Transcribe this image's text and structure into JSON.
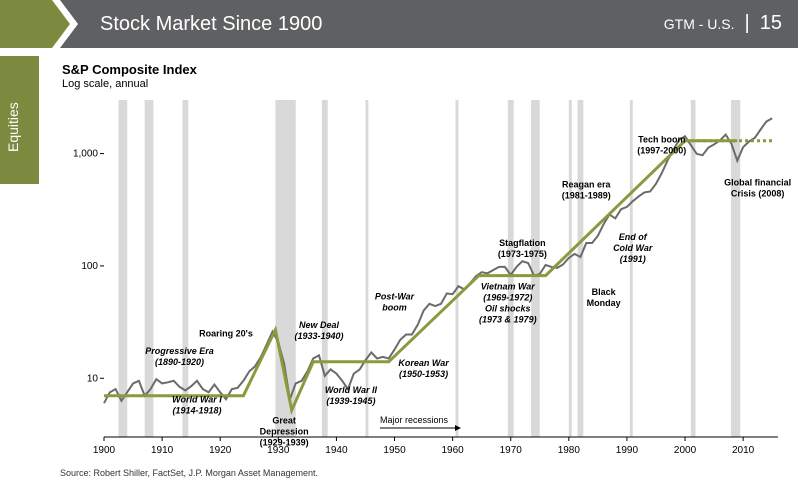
{
  "header": {
    "title": "Stock Market Since 1900",
    "section": "GTM - U.S.",
    "separator": "|",
    "page_number": "15"
  },
  "side_tab": {
    "label": "Equities"
  },
  "source": "Source: Robert Shiller, FactSet, J.P. Morgan Asset Management.",
  "colors": {
    "header_bg": "#5f6062",
    "accent_olive": "#7b8a3f",
    "index_line": "#6b6b6b",
    "trend_line": "#8a9a3c",
    "recession_band": "#d9d9d9"
  },
  "chart_data": {
    "type": "line",
    "title": "S&P Composite Index",
    "subtitle": "Log scale, annual",
    "y_scale": "log",
    "xlim": [
      1900,
      2016
    ],
    "ylim": [
      3,
      3000
    ],
    "x_ticks": [
      "1900",
      "1910",
      "1920",
      "1930",
      "1940",
      "1950",
      "1960",
      "1970",
      "1980",
      "1990",
      "2000",
      "2010"
    ],
    "y_ticks": [
      {
        "value": 10,
        "label": "10"
      },
      {
        "value": 100,
        "label": "100"
      },
      {
        "value": 1000,
        "label": "1,000"
      }
    ],
    "grid": false,
    "recessions_label": "Major recessions",
    "recessions": [
      [
        1902.5,
        1904
      ],
      [
        1907,
        1908.5
      ],
      [
        1913.5,
        1914.5
      ],
      [
        1929.5,
        1933
      ],
      [
        1937.5,
        1938.5
      ],
      [
        1945,
        1945.5
      ],
      [
        1960.5,
        1961
      ],
      [
        1969.5,
        1970.5
      ],
      [
        1973.5,
        1975
      ],
      [
        1980,
        1980.5
      ],
      [
        1981.5,
        1982.5
      ],
      [
        1990.5,
        1991
      ],
      [
        2001,
        2001.8
      ],
      [
        2007.9,
        2009.5
      ]
    ],
    "series": [
      {
        "values": [
          [
            1900,
            6.0
          ],
          [
            1901,
            7.5
          ],
          [
            1902,
            8.0
          ],
          [
            1903,
            6.3
          ],
          [
            1904,
            7.5
          ],
          [
            1905,
            9.0
          ],
          [
            1906,
            9.5
          ],
          [
            1907,
            7.0
          ],
          [
            1908,
            8.0
          ],
          [
            1909,
            9.8
          ],
          [
            1910,
            9.0
          ],
          [
            1911,
            9.2
          ],
          [
            1912,
            9.5
          ],
          [
            1913,
            8.4
          ],
          [
            1914,
            7.8
          ],
          [
            1915,
            8.5
          ],
          [
            1916,
            9.5
          ],
          [
            1917,
            8.0
          ],
          [
            1918,
            7.5
          ],
          [
            1919,
            8.8
          ],
          [
            1920,
            7.5
          ],
          [
            1921,
            6.5
          ],
          [
            1922,
            8.0
          ],
          [
            1923,
            8.2
          ],
          [
            1924,
            9.5
          ],
          [
            1925,
            11.5
          ],
          [
            1926,
            12.8
          ],
          [
            1927,
            15.5
          ],
          [
            1928,
            20.0
          ],
          [
            1929,
            26.0
          ],
          [
            1930,
            21.0
          ],
          [
            1931,
            13.5
          ],
          [
            1932,
            6.5
          ],
          [
            1933,
            9.0
          ],
          [
            1934,
            9.5
          ],
          [
            1935,
            11.5
          ],
          [
            1936,
            15.0
          ],
          [
            1937,
            16.0
          ],
          [
            1938,
            10.5
          ],
          [
            1939,
            12.0
          ],
          [
            1940,
            11.0
          ],
          [
            1941,
            9.5
          ],
          [
            1942,
            8.0
          ],
          [
            1943,
            11.0
          ],
          [
            1944,
            12.0
          ],
          [
            1945,
            14.5
          ],
          [
            1946,
            17.0
          ],
          [
            1947,
            15.0
          ],
          [
            1948,
            15.5
          ],
          [
            1949,
            15.0
          ],
          [
            1950,
            18.0
          ],
          [
            1951,
            22.0
          ],
          [
            1952,
            24.5
          ],
          [
            1953,
            24.5
          ],
          [
            1954,
            30.0
          ],
          [
            1955,
            40.0
          ],
          [
            1956,
            46.0
          ],
          [
            1957,
            44.0
          ],
          [
            1958,
            46.0
          ],
          [
            1959,
            57.0
          ],
          [
            1960,
            56.0
          ],
          [
            1961,
            66.0
          ],
          [
            1962,
            62.0
          ],
          [
            1963,
            70.0
          ],
          [
            1964,
            81.0
          ],
          [
            1965,
            88.0
          ],
          [
            1966,
            86.0
          ],
          [
            1967,
            92.0
          ],
          [
            1968,
            98.0
          ],
          [
            1969,
            98.0
          ],
          [
            1970,
            83.0
          ],
          [
            1971,
            98.0
          ],
          [
            1972,
            110.0
          ],
          [
            1973,
            106.0
          ],
          [
            1974,
            82.0
          ],
          [
            1975,
            85.0
          ],
          [
            1976,
            102.0
          ],
          [
            1977,
            98.0
          ],
          [
            1978,
            96.0
          ],
          [
            1979,
            103.0
          ],
          [
            1980,
            118.0
          ],
          [
            1981,
            128.0
          ],
          [
            1982,
            120.0
          ],
          [
            1983,
            160.0
          ],
          [
            1984,
            160.0
          ],
          [
            1985,
            186.0
          ],
          [
            1986,
            236.0
          ],
          [
            1987,
            287.0
          ],
          [
            1988,
            265.0
          ],
          [
            1989,
            320.0
          ],
          [
            1990,
            335.0
          ],
          [
            1991,
            376.0
          ],
          [
            1992,
            416.0
          ],
          [
            1993,
            451.0
          ],
          [
            1994,
            460.0
          ],
          [
            1995,
            540.0
          ],
          [
            1996,
            670.0
          ],
          [
            1997,
            870.0
          ],
          [
            1998,
            1085.0
          ],
          [
            1999,
            1327.0
          ],
          [
            2000,
            1427.0
          ],
          [
            2001,
            1190.0
          ],
          [
            2002,
            995.0
          ],
          [
            2003,
            965.0
          ],
          [
            2004,
            1130.0
          ],
          [
            2005,
            1207.0
          ],
          [
            2006,
            1310.0
          ],
          [
            2007,
            1477.0
          ],
          [
            2008,
            1220.0
          ],
          [
            2009,
            865.0
          ],
          [
            2010,
            1140.0
          ],
          [
            2011,
            1280.0
          ],
          [
            2012,
            1380.0
          ],
          [
            2013,
            1640.0
          ],
          [
            2014,
            1930.0
          ],
          [
            2015,
            2060.0
          ]
        ]
      }
    ],
    "trend_lines": [
      [
        [
          1900,
          7
        ],
        [
          1924,
          7
        ],
        [
          1929.5,
          27
        ],
        [
          1932.3,
          5.2
        ],
        [
          1936,
          14
        ],
        [
          1949,
          14
        ],
        [
          1964.5,
          82
        ],
        [
          1976,
          82
        ],
        [
          2000,
          1300
        ],
        [
          2009,
          1300
        ]
      ],
      [
        [
          2000,
          1300
        ],
        [
          2015,
          1300
        ]
      ]
    ],
    "annotations": [
      {
        "lines": [
          "Progressive Era",
          "(1890-1920)"
        ],
        "italic": true,
        "x": 1913,
        "y": 16.5
      },
      {
        "lines": [
          "Roaring 20's"
        ],
        "italic": false,
        "x": 1921,
        "y": 23.5
      },
      {
        "lines": [
          "World War I",
          "(1914-1918)"
        ],
        "italic": true,
        "x": 1916,
        "y": 6.1
      },
      {
        "lines": [
          "New Deal",
          "(1933-1940)"
        ],
        "italic": true,
        "x": 1937,
        "y": 28
      },
      {
        "lines": [
          "Great",
          "Depression",
          "(1929-1939)"
        ],
        "italic": false,
        "x": 1931,
        "y": 3.95
      },
      {
        "lines": [
          "World War II",
          "(1939-1945)"
        ],
        "italic": true,
        "x": 1942.5,
        "y": 7.4
      },
      {
        "lines": [
          "Korean War",
          "(1950-1953)"
        ],
        "italic": true,
        "x": 1955,
        "y": 12.8
      },
      {
        "lines": [
          "Post-War",
          "boom"
        ],
        "italic": true,
        "x": 1950,
        "y": 50
      },
      {
        "lines": [
          "Stagflation",
          "(1973-1975)"
        ],
        "italic": false,
        "x": 1972,
        "y": 150
      },
      {
        "lines": [
          "Vietnam War",
          "(1969-1972)",
          "Oil shocks",
          "(1973 & 1979)"
        ],
        "italic": true,
        "x": 1969.5,
        "y": 62
      },
      {
        "lines": [
          "Reagan era",
          "(1981-1989)"
        ],
        "italic": false,
        "x": 1983,
        "y": 500
      },
      {
        "lines": [
          "Black",
          "Monday"
        ],
        "italic": false,
        "x": 1986,
        "y": 55
      },
      {
        "lines": [
          "End of",
          "Cold War",
          "(1991)"
        ],
        "italic": true,
        "x": 1991,
        "y": 170
      },
      {
        "lines": [
          "Tech boom",
          "(1997-2000)"
        ],
        "italic": false,
        "x": 1996,
        "y": 1250
      },
      {
        "lines": [
          "Global financial",
          "Crisis (2008)"
        ],
        "italic": false,
        "x": 2012.5,
        "y": 520
      }
    ]
  }
}
